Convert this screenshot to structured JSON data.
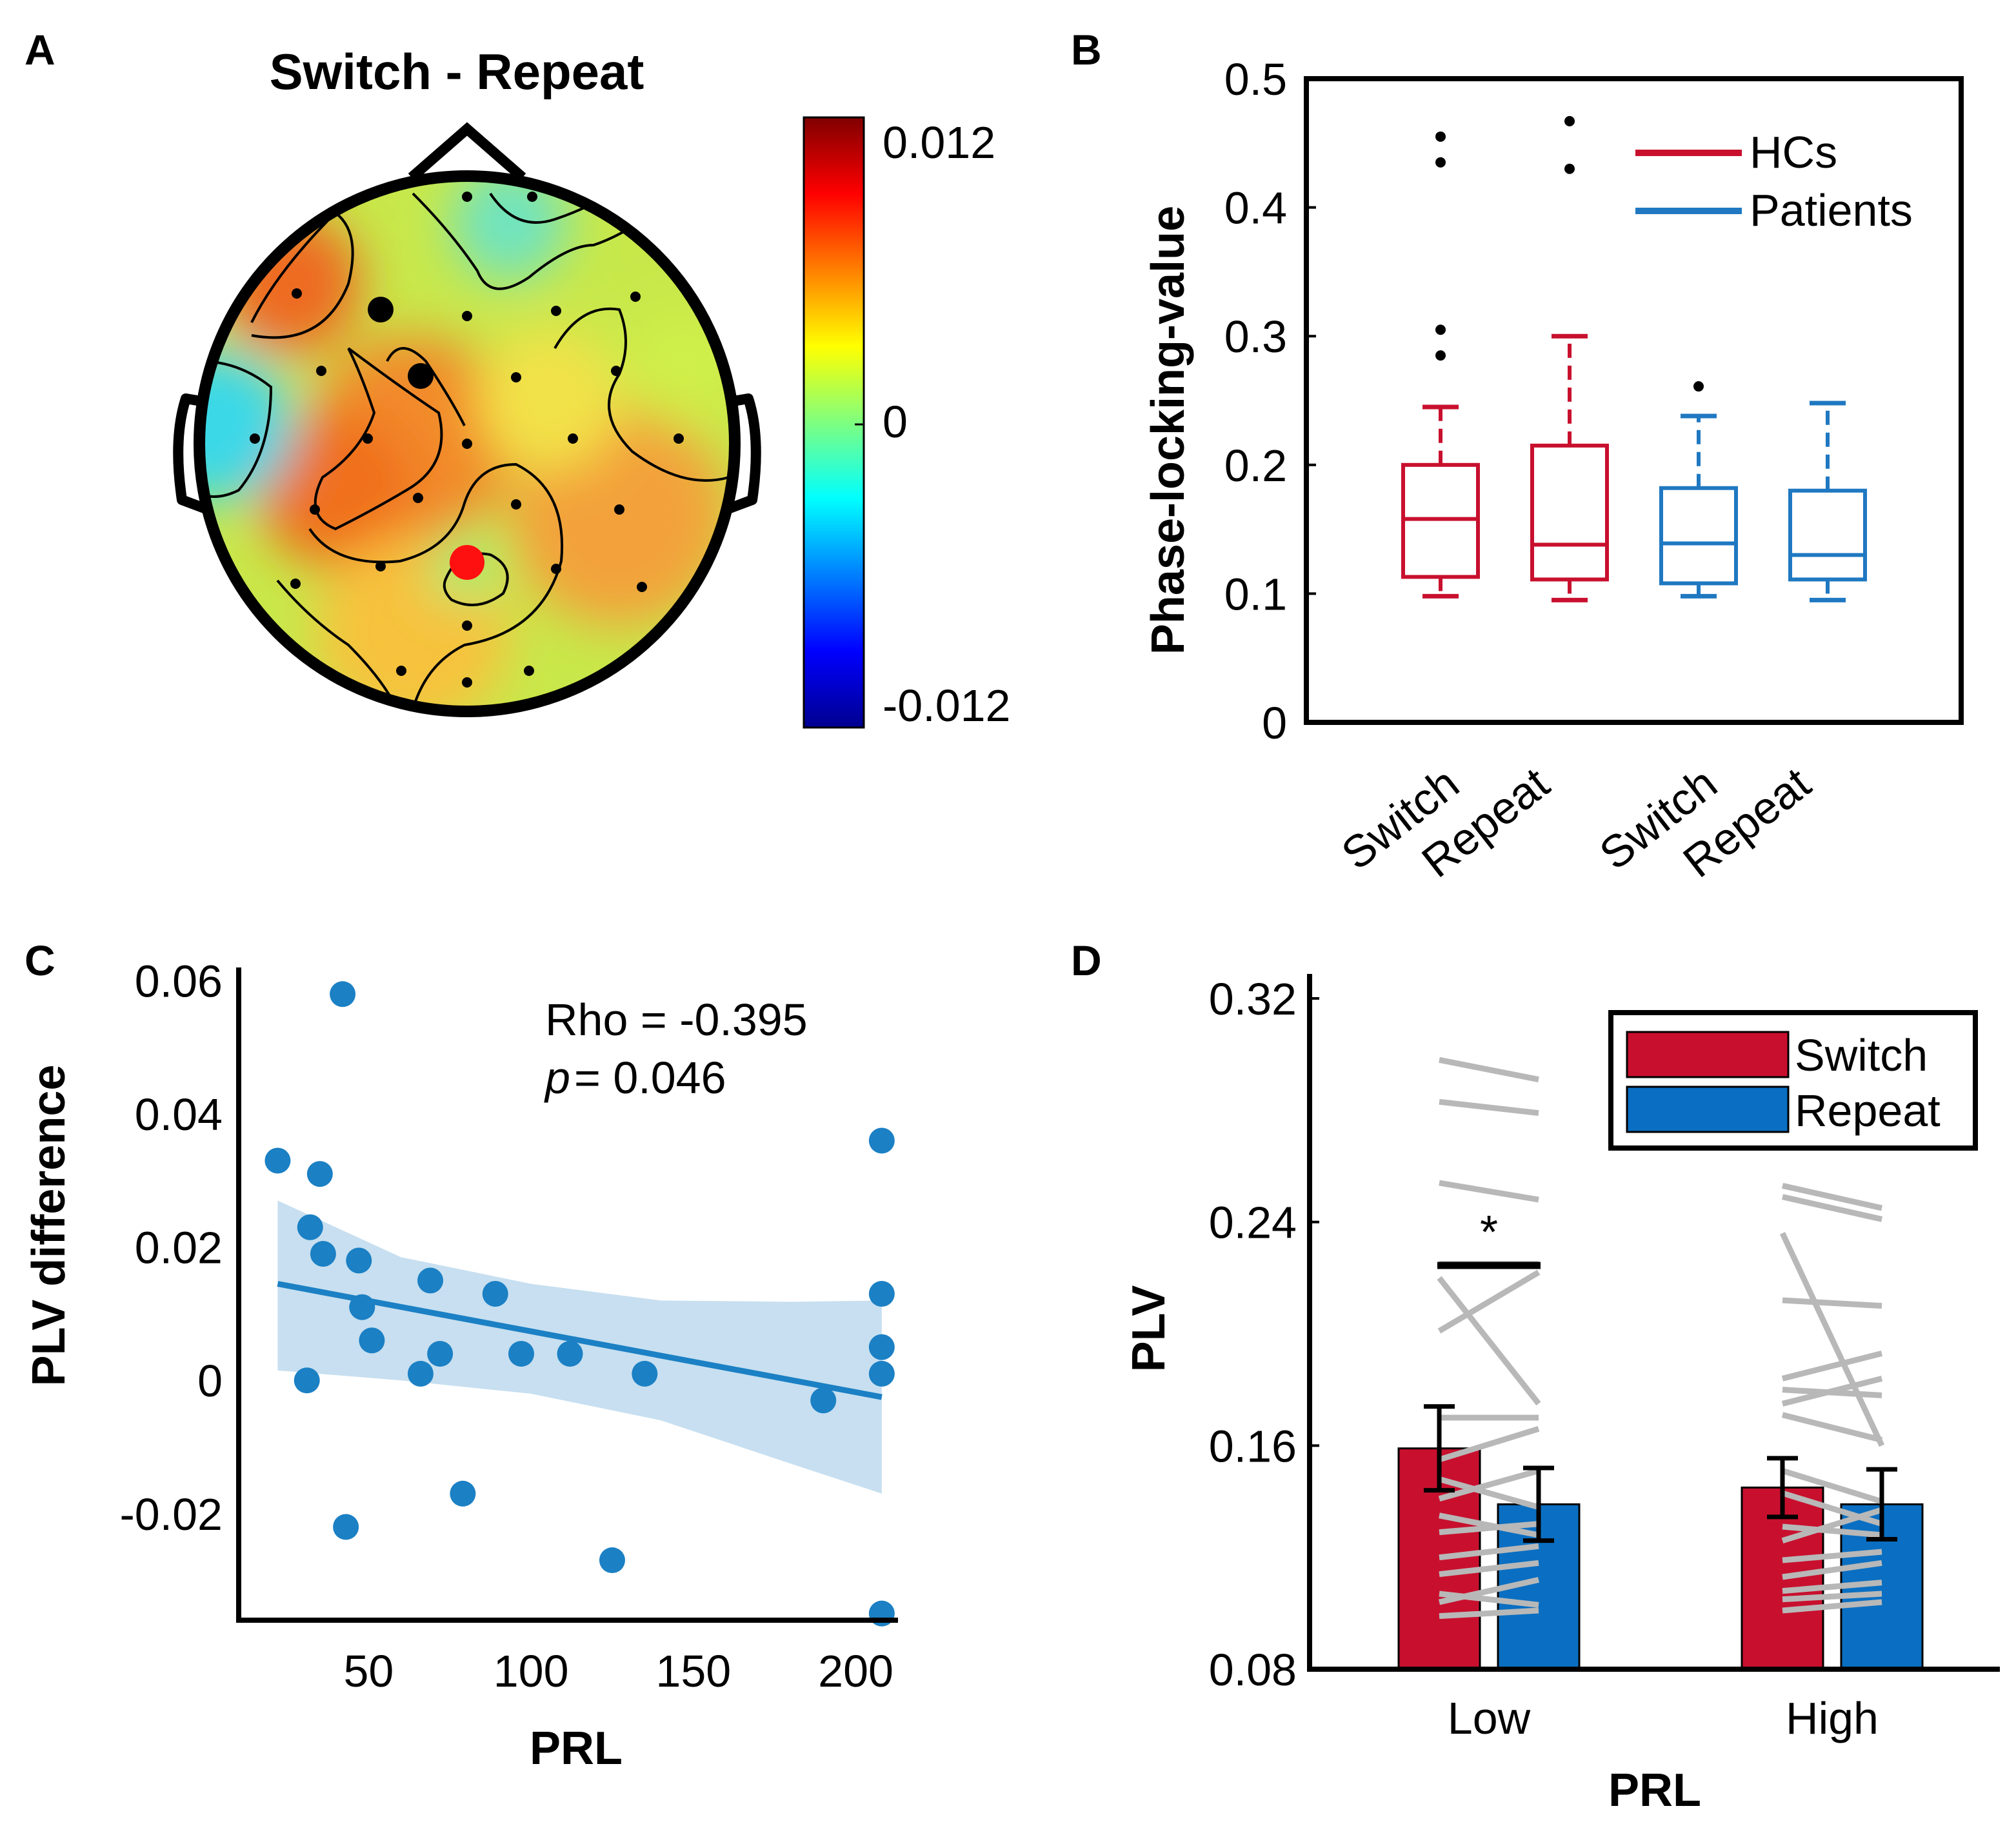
{
  "panels": {
    "a": {
      "label": "A",
      "title": "Switch - Repeat",
      "colorbar": {
        "max_label": "0.012",
        "mid_label": "0",
        "min_label": "-0.012"
      }
    },
    "b": {
      "label": "B"
    },
    "c": {
      "label": "C",
      "rho_text": "Rho = -0.395",
      "p_symbol": "p",
      "p_text": "=  0.046"
    },
    "d": {
      "label": "D",
      "star": "*"
    }
  },
  "colors": {
    "hc": "#c8102e",
    "patients": "#1f78c1",
    "switch": "#c8102e",
    "repeat": "#0a6fc2",
    "scatter": "#1b80c4",
    "ci": "#c7dff0",
    "pair_lines": "#b8b8b8"
  },
  "chart_data": [
    {
      "id": "b",
      "type": "box",
      "ylabel": "Phase-locking-value",
      "ylim": [
        0,
        0.5
      ],
      "yticks": [
        "0",
        "0.1",
        "0.2",
        "0.3",
        "0.4",
        "0.5"
      ],
      "legend": [
        "HCs",
        "Patients"
      ],
      "legend_position": "top-right",
      "boxes": [
        {
          "label": "Switch",
          "group": "HCs",
          "whisker_low": 0.098,
          "q1": 0.113,
          "median": 0.158,
          "q3": 0.2,
          "whisker_high": 0.245,
          "outliers": [
            0.285,
            0.305,
            0.435,
            0.455
          ]
        },
        {
          "label": "Repeat",
          "group": "HCs",
          "whisker_low": 0.095,
          "q1": 0.111,
          "median": 0.138,
          "q3": 0.215,
          "whisker_high": 0.3,
          "outliers": [
            0.43,
            0.467
          ]
        },
        {
          "label": "Switch",
          "group": "Patients",
          "whisker_low": 0.098,
          "q1": 0.108,
          "median": 0.139,
          "q3": 0.182,
          "whisker_high": 0.238,
          "outliers": [
            0.261
          ]
        },
        {
          "label": "Repeat",
          "group": "Patients",
          "whisker_low": 0.095,
          "q1": 0.111,
          "median": 0.13,
          "q3": 0.18,
          "whisker_high": 0.248,
          "outliers": []
        }
      ]
    },
    {
      "id": "c",
      "type": "scatter",
      "xlabel": "PRL",
      "ylabel": "PLV difference",
      "xlim": [
        10,
        213
      ],
      "ylim": [
        -0.036,
        0.062
      ],
      "xticks": [
        "50",
        "100",
        "150",
        "200"
      ],
      "yticks": [
        "0.06",
        "0.04",
        "0.02",
        "0",
        "-0.02"
      ],
      "points": [
        [
          22,
          0.033
        ],
        [
          35,
          0.031
        ],
        [
          42,
          0.058
        ],
        [
          32,
          0.023
        ],
        [
          36,
          0.019
        ],
        [
          47,
          0.018
        ],
        [
          48,
          0.011
        ],
        [
          51,
          0.006
        ],
        [
          69,
          0.015
        ],
        [
          72,
          0.004
        ],
        [
          66,
          0.001
        ],
        [
          89,
          0.013
        ],
        [
          97,
          0.004
        ],
        [
          112,
          0.004
        ],
        [
          135,
          0.001
        ],
        [
          31,
          0
        ],
        [
          43,
          -0.022
        ],
        [
          79,
          -0.017
        ],
        [
          125,
          -0.027
        ],
        [
          190,
          -0.003
        ],
        [
          208,
          0.036
        ],
        [
          208,
          0.013
        ],
        [
          208,
          0.005
        ],
        [
          208,
          0.001
        ],
        [
          208,
          -0.035
        ]
      ],
      "fit": {
        "x": [
          22,
          208
        ],
        "y": [
          0.0145,
          -0.0025
        ]
      },
      "ci_band": {
        "x": [
          22,
          60,
          100,
          140,
          180,
          208
        ],
        "upper": [
          0.027,
          0.0185,
          0.0145,
          0.012,
          0.0118,
          0.012
        ],
        "lower": [
          0.0015,
          0.0,
          -0.002,
          -0.006,
          -0.0125,
          -0.017
        ]
      }
    },
    {
      "id": "d",
      "type": "bar",
      "xlabel": "PRL",
      "ylabel": "PLV",
      "ylim": [
        0.08,
        0.325
      ],
      "yticks": [
        "0.32",
        "0.24",
        "0.16",
        "0.08"
      ],
      "categories": [
        "Low",
        "High"
      ],
      "legend": [
        "Switch",
        "Repeat"
      ],
      "legend_position": "top-right",
      "series": [
        {
          "name": "Switch",
          "values": [
            0.159,
            0.145
          ],
          "errors": [
            0.015,
            0.0105
          ]
        },
        {
          "name": "Repeat",
          "values": [
            0.139,
            0.139
          ],
          "errors": [
            0.013,
            0.0125
          ]
        }
      ],
      "significance": {
        "category": "Low",
        "label": "*"
      },
      "paired_lines": {
        "Low": [
          [
            0.298,
            0.291
          ],
          [
            0.283,
            0.279
          ],
          [
            0.254,
            0.248
          ],
          [
            0.225,
            0.225
          ],
          [
            0.201,
            0.222
          ],
          [
            0.22,
            0.175
          ],
          [
            0.17,
            0.17
          ],
          [
            0.155,
            0.166
          ],
          [
            0.148,
            0.138
          ],
          [
            0.141,
            0.151
          ],
          [
            0.135,
            0.128
          ],
          [
            0.129,
            0.132
          ],
          [
            0.12,
            0.124
          ],
          [
            0.114,
            0.118
          ],
          [
            0.107,
            0.103
          ],
          [
            0.104,
            0.112
          ],
          [
            0.099,
            0.101
          ]
        ],
        "High": [
          [
            0.253,
            0.245
          ],
          [
            0.249,
            0.241
          ],
          [
            0.236,
            0.16
          ],
          [
            0.212,
            0.21
          ],
          [
            0.184,
            0.193
          ],
          [
            0.18,
            0.178
          ],
          [
            0.175,
            0.184
          ],
          [
            0.171,
            0.162
          ],
          [
            0.151,
            0.14
          ],
          [
            0.143,
            0.132
          ],
          [
            0.131,
            0.128
          ],
          [
            0.126,
            0.137
          ],
          [
            0.119,
            0.122
          ],
          [
            0.113,
            0.118
          ],
          [
            0.108,
            0.111
          ],
          [
            0.105,
            0.107
          ],
          [
            0.101,
            0.104
          ]
        ]
      }
    }
  ]
}
